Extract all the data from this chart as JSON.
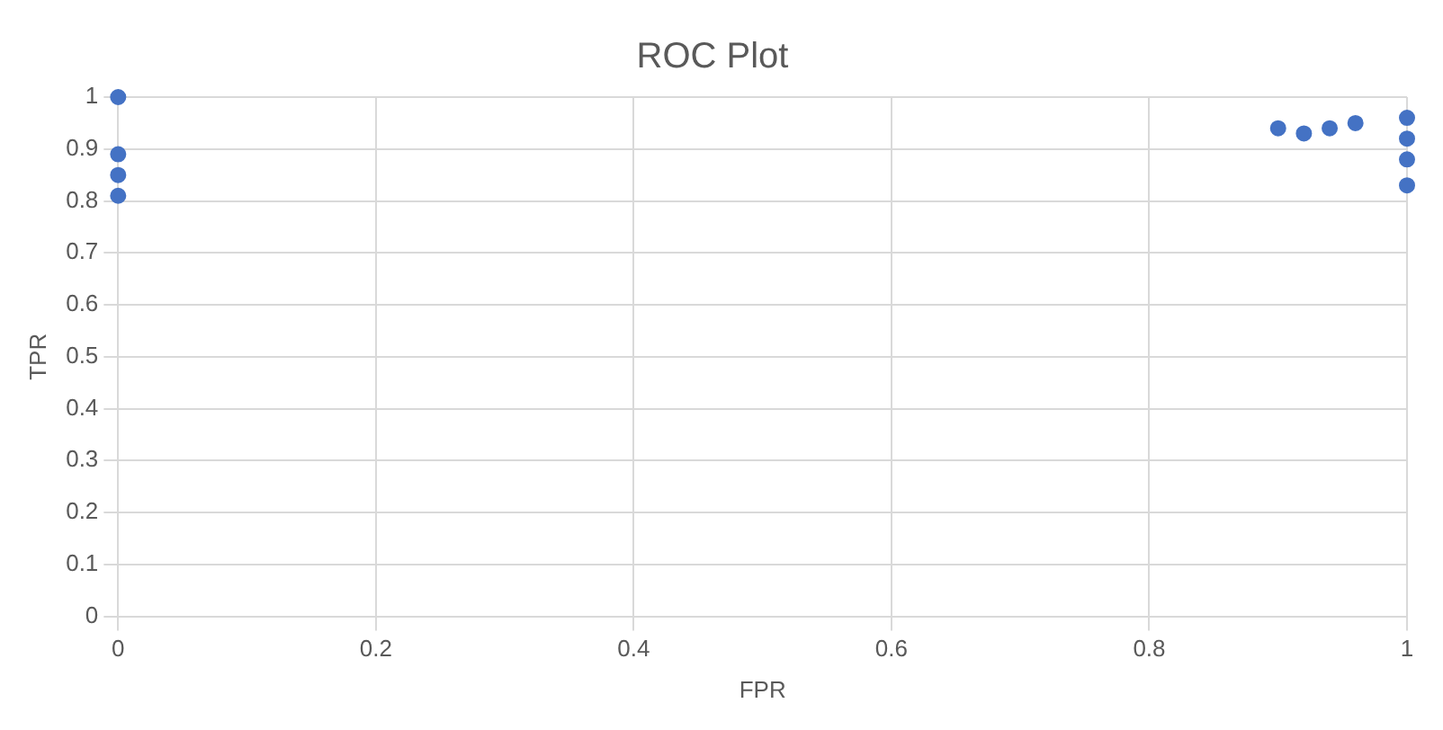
{
  "chart_data": {
    "type": "scatter",
    "title": "ROC Plot",
    "xlabel": "FPR",
    "ylabel": "TPR",
    "x": [
      0,
      0,
      0,
      0,
      0.9,
      0.92,
      0.94,
      0.96,
      1,
      1,
      1,
      1
    ],
    "series": [
      {
        "color": "#4472c4",
        "values": [
          1,
          0.89,
          0.85,
          0.81,
          0.94,
          0.93,
          0.94,
          0.95,
          0.96,
          0.92,
          0.88,
          0.83
        ]
      }
    ],
    "xlim": [
      0,
      1
    ],
    "ylim": [
      0,
      1
    ],
    "xticks": [
      0,
      0.2,
      0.4,
      0.6,
      0.8,
      1
    ],
    "yticks": [
      0,
      0.1,
      0.2,
      0.3,
      0.4,
      0.5,
      0.6,
      0.7,
      0.8,
      0.9,
      1
    ],
    "grid": true,
    "marker": "circle",
    "legend": false
  }
}
